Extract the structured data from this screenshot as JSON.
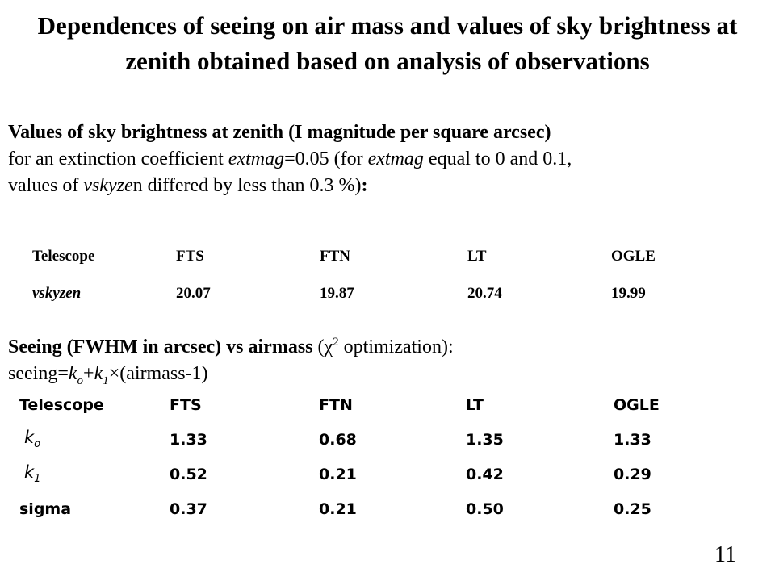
{
  "title": "Dependences of seeing on air mass and values of sky brightness at zenith obtained based on analysis of observations",
  "sky": {
    "heading": "Values of sky brightness at zenith (I magnitude per square arcsec)",
    "line2_a": "for an extinction coefficient ",
    "extmag_var": "extmag",
    "line2_b": "=0.05 (for ",
    "line2_c": " equal to 0 and 0.1,",
    "line3_a": "values of ",
    "vsky_var": "vskyze",
    "line3_b": "n differed by less than 0.3 %)",
    "colon": ":",
    "table": {
      "headers": [
        "Telescope",
        "FTS",
        "FTN",
        "LT",
        "OGLE"
      ],
      "row_label": "vskyzen",
      "values": [
        "20.07",
        "19.87",
        "20.74",
        "19.99"
      ]
    }
  },
  "seeing": {
    "heading": "Seeing (FWHM in arcsec) vs airmass",
    "opt_a": " (χ",
    "opt_sup": "2",
    "opt_b": " optimization):",
    "formula_a": "seeing=",
    "k": "k",
    "sub_o": "o",
    "plus": "+",
    "sub_1": "1",
    "formula_b": "×(airmass-1)",
    "table": {
      "headers": [
        "Telescope",
        "FTS",
        "FTN",
        "LT",
        "OGLE"
      ],
      "rows": [
        {
          "label_base": "k",
          "label_sub": "o",
          "values": [
            "1.33",
            "0.68",
            "1.35",
            "1.33"
          ]
        },
        {
          "label_base": "k",
          "label_sub": "1",
          "values": [
            "0.52",
            "0.21",
            "0.42",
            "0.29"
          ]
        },
        {
          "label": "sigma",
          "values": [
            "0.37",
            "0.21",
            "0.50",
            "0.25"
          ]
        }
      ]
    }
  },
  "page_number": "11"
}
